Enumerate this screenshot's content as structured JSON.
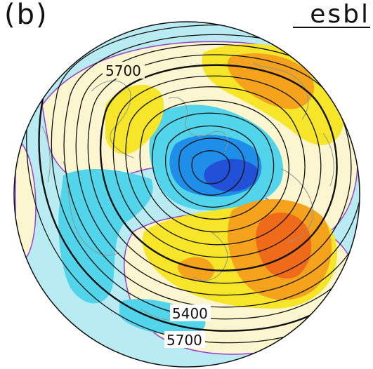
{
  "panel_label": "(b)",
  "experiment_label": "esbl",
  "contour_labels": [
    "5700",
    "5400",
    "5700"
  ],
  "colors": {
    "ocean_background": "#b9ecf2",
    "light_positive": "#fbf6cf",
    "yellow": "#f7e52a",
    "orange": "#f5a31c",
    "red_orange": "#ef6b1a",
    "cyan": "#52d4ea",
    "blue": "#1f8ee8",
    "dark_blue": "#2251d8",
    "zero_contour": "#9b3fc7",
    "height_contour": "#111111",
    "coastline": "#8a9a90"
  }
}
